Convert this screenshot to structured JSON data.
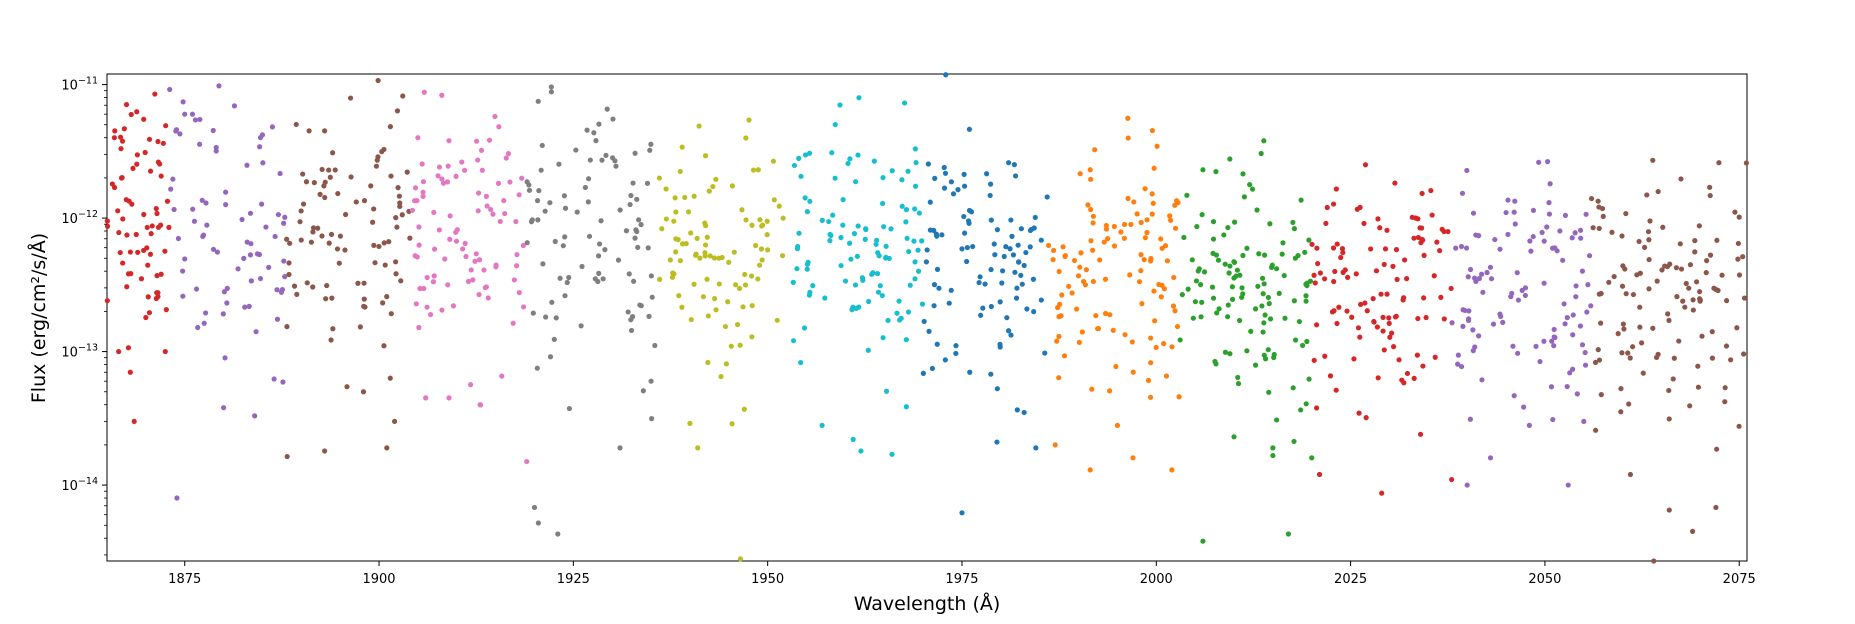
{
  "chart_data": {
    "type": "scatter",
    "title": "",
    "xlabel": "Wavelength (Å)",
    "ylabel": "Flux (erg/cm²/s/Å)",
    "xlim": [
      1865,
      2076
    ],
    "ylim": [
      2.7e-15,
      1.2e-11
    ],
    "yscale": "log",
    "grid": false,
    "legend": "none",
    "x_ticks": [
      {
        "value": 1875,
        "label": "1875"
      },
      {
        "value": 1900,
        "label": "1900"
      },
      {
        "value": 1925,
        "label": "1925"
      },
      {
        "value": 1950,
        "label": "1950"
      },
      {
        "value": 1975,
        "label": "1975"
      },
      {
        "value": 2000,
        "label": "2000"
      },
      {
        "value": 2025,
        "label": "2025"
      },
      {
        "value": 2050,
        "label": "2050"
      },
      {
        "value": 2075,
        "label": "2075"
      }
    ],
    "y_ticks": [
      {
        "value": 1e-11,
        "label": "10−11"
      },
      {
        "value": 1e-12,
        "label": "10−12"
      },
      {
        "value": 1e-13,
        "label": "10−13"
      },
      {
        "value": 1e-14,
        "label": "10−14"
      }
    ],
    "series": [
      {
        "color": "#d62728",
        "x_range": [
          1865,
          1873
        ],
        "n": 70,
        "median": 1.3e-12,
        "spread": 0.45,
        "points": [
          [
            1866,
            4.5e-12
          ],
          [
            1866.5,
            1e-13
          ],
          [
            1868,
            7e-14
          ],
          [
            1868.5,
            3e-14
          ],
          [
            1870,
            1.8e-13
          ],
          [
            1872.5,
            1e-13
          ]
        ]
      },
      {
        "color": "#9467bd",
        "x_range": [
          1873,
          1888
        ],
        "n": 75,
        "median": 8e-13,
        "spread": 0.5,
        "points": [
          [
            1875,
            6e-12
          ],
          [
            1876,
            6e-12
          ],
          [
            1874,
            8e-15
          ],
          [
            1880,
            3.8e-14
          ],
          [
            1884,
            3.3e-14
          ],
          [
            1885,
            4.2e-12
          ]
        ]
      },
      {
        "color": "#8c564b",
        "x_range": [
          1888,
          1904
        ],
        "n": 95,
        "median": 9e-13,
        "spread": 0.5,
        "points": [
          [
            1891,
            4.5e-12
          ],
          [
            1893,
            4.5e-12
          ],
          [
            1893,
            1.8e-14
          ],
          [
            1901,
            1.9e-14
          ],
          [
            1898,
            5e-14
          ],
          [
            1902,
            3e-14
          ]
        ]
      },
      {
        "color": "#e377c2",
        "x_range": [
          1904,
          1919
        ],
        "n": 95,
        "median": 8e-13,
        "spread": 0.45,
        "points": [
          [
            1905,
            4e-12
          ],
          [
            1909,
            3.8e-12
          ],
          [
            1909,
            4.5e-14
          ],
          [
            1913,
            4e-14
          ],
          [
            1919,
            1.5e-14
          ],
          [
            1906,
            4.5e-14
          ]
        ]
      },
      {
        "color": "#7f7f7f",
        "x_range": [
          1919,
          1936
        ],
        "n": 95,
        "median": 6e-13,
        "spread": 0.5,
        "points": [
          [
            1920,
            6.8e-15
          ],
          [
            1920.5,
            5.2e-15
          ],
          [
            1923,
            4.3e-15
          ],
          [
            1921,
            3.5e-12
          ],
          [
            1931,
            1.9e-14
          ],
          [
            1935,
            6e-14
          ]
        ]
      },
      {
        "color": "#bcbd22",
        "x_range": [
          1936,
          1952
        ],
        "n": 95,
        "median": 5.5e-13,
        "spread": 0.45,
        "points": [
          [
            1939,
            3.4e-12
          ],
          [
            1946.5,
            2.8e-15
          ],
          [
            1941,
            1.9e-14
          ],
          [
            1940,
            2.9e-14
          ],
          [
            1947,
            3.7e-14
          ],
          [
            1944,
            6.5e-14
          ]
        ]
      },
      {
        "color": "#17becf",
        "x_range": [
          1953,
          1970
        ],
        "n": 110,
        "median": 6e-13,
        "spread": 0.45,
        "points": [
          [
            1954,
            2.8e-12
          ],
          [
            1969,
            3.3e-12
          ],
          [
            1962,
            1.8e-14
          ],
          [
            1966,
            1.7e-14
          ],
          [
            1957,
            2.8e-14
          ],
          [
            1961,
            2.2e-14
          ]
        ]
      },
      {
        "color": "#1f77b4",
        "x_range": [
          1970,
          1986
        ],
        "n": 100,
        "median": 4.5e-13,
        "spread": 0.45,
        "points": [
          [
            1975,
            6.2e-15
          ],
          [
            1979.5,
            2.1e-14
          ],
          [
            1981,
            2.6e-12
          ],
          [
            1984.5,
            1.9e-14
          ],
          [
            1976,
            7e-14
          ],
          [
            1983,
            3.5e-14
          ]
        ]
      },
      {
        "color": "#ff7f0e",
        "x_range": [
          1986,
          2003
        ],
        "n": 115,
        "median": 4e-13,
        "spread": 0.45,
        "points": [
          [
            1991.5,
            2.3e-12
          ],
          [
            1991.5,
            1.3e-14
          ],
          [
            1997,
            1.6e-14
          ],
          [
            2002,
            1.3e-14
          ],
          [
            1995,
            2.8e-14
          ],
          [
            1987,
            2e-14
          ]
        ]
      },
      {
        "color": "#2ca02c",
        "x_range": [
          2003,
          2020
        ],
        "n": 120,
        "median": 3.2e-13,
        "spread": 0.45,
        "points": [
          [
            2006,
            2.3e-12
          ],
          [
            2006,
            3.8e-15
          ],
          [
            2017,
            4.3e-15
          ],
          [
            2015,
            1.9e-14
          ],
          [
            2010,
            2.3e-14
          ],
          [
            2020,
            1.6e-14
          ]
        ]
      },
      {
        "color": "#d62728",
        "x_range": [
          2020,
          2038
        ],
        "n": 110,
        "median": 2.5e-13,
        "spread": 0.45,
        "points": [
          [
            2022,
            1.2e-12
          ],
          [
            2021,
            1.2e-14
          ],
          [
            2029,
            8.7e-15
          ],
          [
            2034,
            2.4e-14
          ],
          [
            2038,
            1.1e-14
          ],
          [
            2027,
            3.2e-14
          ]
        ]
      },
      {
        "color": "#9467bd",
        "x_range": [
          2038,
          2056
        ],
        "n": 110,
        "median": 2.5e-13,
        "spread": 0.45,
        "points": [
          [
            2045,
            1.1e-12
          ],
          [
            2040,
            1e-14
          ],
          [
            2043,
            1.6e-14
          ],
          [
            2053,
            1e-14
          ],
          [
            2055,
            3e-14
          ],
          [
            2048,
            2.8e-14
          ]
        ]
      },
      {
        "color": "#8c564b",
        "x_range": [
          2056,
          2076
        ],
        "n": 120,
        "median": 2.8e-13,
        "spread": 0.45,
        "points": [
          [
            2056,
            1.4e-12
          ],
          [
            2061,
            1.2e-14
          ],
          [
            2064,
            2.7e-15
          ],
          [
            2066,
            6.5e-15
          ],
          [
            2069,
            4.5e-15
          ],
          [
            2072,
            6.8e-15
          ]
        ]
      }
    ]
  }
}
